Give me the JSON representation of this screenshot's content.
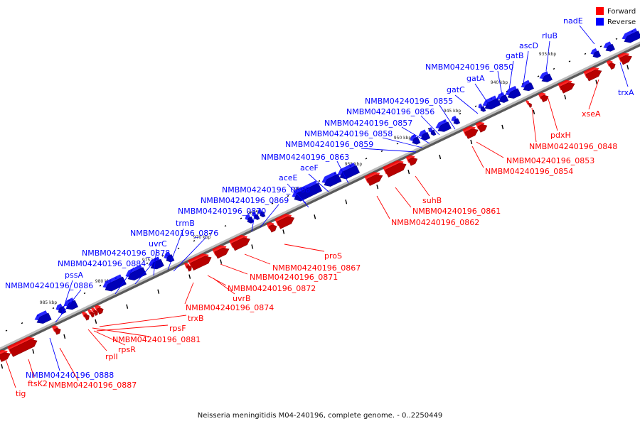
{
  "caption": "Neisseria meningitidis M04-240196, complete genome. - 0..2250449",
  "colors": {
    "forward": "#ff0000",
    "reverse": "#0000ff",
    "backbone": "#9a9a9a"
  },
  "legend": [
    {
      "label": "Forward",
      "color": "#ff0000"
    },
    {
      "label": "Reverse",
      "color": "#0000ff"
    }
  ],
  "ticks": [
    "985 kbp",
    "980 kbp",
    "975 kbp",
    "970 kbp",
    "965 kbp",
    "960 kbp",
    "955 kbp",
    "950 kbp",
    "945 kbp",
    "940 kbp",
    "935 kbp"
  ],
  "genes": [
    {
      "label": "nadE",
      "strand": "reverse"
    },
    {
      "label": "trxA",
      "strand": "reverse"
    },
    {
      "label": "rluB",
      "strand": "reverse"
    },
    {
      "label": "ascD",
      "strand": "reverse"
    },
    {
      "label": "gatB",
      "strand": "reverse"
    },
    {
      "label": "NMBM04240196_0850",
      "strand": "reverse"
    },
    {
      "label": "gatA",
      "strand": "reverse"
    },
    {
      "label": "gatC",
      "strand": "reverse"
    },
    {
      "label": "NMBM04240196_0855",
      "strand": "reverse"
    },
    {
      "label": "NMBM04240196_0856",
      "strand": "reverse"
    },
    {
      "label": "NMBM04240196_0857",
      "strand": "reverse"
    },
    {
      "label": "NMBM04240196_0858",
      "strand": "reverse"
    },
    {
      "label": "NMBM04240196_0859",
      "strand": "reverse"
    },
    {
      "label": "NMBM04240196_0863",
      "strand": "reverse"
    },
    {
      "label": "aceF",
      "strand": "reverse"
    },
    {
      "label": "aceE",
      "strand": "reverse"
    },
    {
      "label": "NMBM04240196_0868",
      "strand": "reverse"
    },
    {
      "label": "NMBM04240196_0869",
      "strand": "reverse"
    },
    {
      "label": "NMBM04240196_0870",
      "strand": "reverse"
    },
    {
      "label": "trmB",
      "strand": "reverse"
    },
    {
      "label": "NMBM04240196_0876",
      "strand": "reverse"
    },
    {
      "label": "uvrC",
      "strand": "reverse"
    },
    {
      "label": "NMBM04240196_0878",
      "strand": "reverse"
    },
    {
      "label": "NMBM04240196_0884",
      "strand": "reverse"
    },
    {
      "label": "pssA",
      "strand": "reverse"
    },
    {
      "label": "NMBM04240196_0886",
      "strand": "reverse"
    },
    {
      "label": "NMBM04240196_0888",
      "strand": "reverse"
    },
    {
      "label": "xseA",
      "strand": "forward"
    },
    {
      "label": "pdxH",
      "strand": "forward"
    },
    {
      "label": "NMBM04240196_0848",
      "strand": "forward"
    },
    {
      "label": "NMBM04240196_0853",
      "strand": "forward"
    },
    {
      "label": "NMBM04240196_0854",
      "strand": "forward"
    },
    {
      "label": "suhB",
      "strand": "forward"
    },
    {
      "label": "NMBM04240196_0861",
      "strand": "forward"
    },
    {
      "label": "NMBM04240196_0862",
      "strand": "forward"
    },
    {
      "label": "proS",
      "strand": "forward"
    },
    {
      "label": "NMBM04240196_0867",
      "strand": "forward"
    },
    {
      "label": "NMBM04240196_0871",
      "strand": "forward"
    },
    {
      "label": "NMBM04240196_0872",
      "strand": "forward"
    },
    {
      "label": "uvrB",
      "strand": "forward"
    },
    {
      "label": "NMBM04240196_0874",
      "strand": "forward"
    },
    {
      "label": "trxB",
      "strand": "forward"
    },
    {
      "label": "rpsF",
      "strand": "forward"
    },
    {
      "label": "NMBM04240196_0881",
      "strand": "forward"
    },
    {
      "label": "rpsR",
      "strand": "forward"
    },
    {
      "label": "rplI",
      "strand": "forward"
    },
    {
      "label": "ftsK2",
      "strand": "forward"
    },
    {
      "label": "NMBM04240196_0887",
      "strand": "forward"
    },
    {
      "label": "tig",
      "strand": "forward"
    }
  ]
}
